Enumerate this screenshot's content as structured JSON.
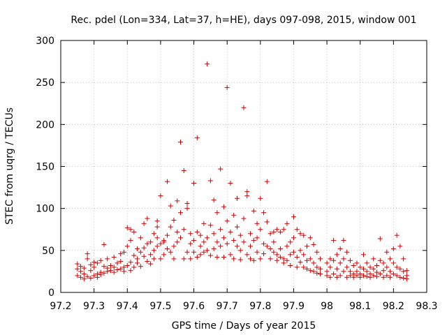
{
  "chart_data": {
    "type": "scatter",
    "title": "Rec. pdel (Lon=334, Lat=37, h=HE), days 097-098, 2015, window 001",
    "xlabel": "GPS time / Days of year 2015",
    "ylabel": "STEC from uqrg / TECUs",
    "xlim": [
      97.2,
      98.3
    ],
    "ylim": [
      0,
      300
    ],
    "xticks": [
      "97.2",
      "97.3",
      "97.4",
      "97.5",
      "97.6",
      "97.7",
      "97.8",
      "97.9",
      "98",
      "98.1",
      "98.2",
      "98.3"
    ],
    "xtick_values": [
      97.2,
      97.3,
      97.4,
      97.5,
      97.6,
      97.7,
      97.8,
      97.9,
      98.0,
      98.1,
      98.2,
      98.3
    ],
    "yticks": [
      "0",
      "50",
      "100",
      "150",
      "200",
      "250",
      "300"
    ],
    "ytick_values": [
      0,
      50,
      100,
      150,
      200,
      250,
      300
    ],
    "grid": true,
    "marker": "+",
    "color": "#cc0000",
    "points": [
      [
        97.25,
        20
      ],
      [
        97.25,
        28
      ],
      [
        97.25,
        34
      ],
      [
        97.26,
        18
      ],
      [
        97.26,
        25
      ],
      [
        97.26,
        31
      ],
      [
        97.27,
        16
      ],
      [
        97.27,
        22
      ],
      [
        97.27,
        29
      ],
      [
        97.28,
        40
      ],
      [
        97.28,
        46
      ],
      [
        97.28,
        19
      ],
      [
        97.29,
        17
      ],
      [
        97.29,
        26
      ],
      [
        97.29,
        33
      ],
      [
        97.3,
        20
      ],
      [
        97.3,
        30
      ],
      [
        97.3,
        36
      ],
      [
        97.31,
        22
      ],
      [
        97.31,
        35
      ],
      [
        97.31,
        18
      ],
      [
        97.32,
        24
      ],
      [
        97.32,
        38
      ],
      [
        97.32,
        21
      ],
      [
        97.33,
        23
      ],
      [
        97.33,
        57
      ],
      [
        97.33,
        31
      ],
      [
        97.34,
        25
      ],
      [
        97.34,
        29
      ],
      [
        97.34,
        40
      ],
      [
        97.35,
        26
      ],
      [
        97.35,
        32
      ],
      [
        97.36,
        24
      ],
      [
        97.36,
        42
      ],
      [
        97.36,
        30
      ],
      [
        97.37,
        27
      ],
      [
        97.37,
        35
      ],
      [
        97.38,
        28
      ],
      [
        97.38,
        37
      ],
      [
        97.38,
        46
      ],
      [
        97.39,
        30
      ],
      [
        97.39,
        48
      ],
      [
        97.39,
        25
      ],
      [
        97.4,
        32
      ],
      [
        97.4,
        55
      ],
      [
        97.4,
        77
      ],
      [
        97.41,
        26
      ],
      [
        97.41,
        36
      ],
      [
        97.41,
        62
      ],
      [
        97.41,
        75
      ],
      [
        97.42,
        30
      ],
      [
        97.42,
        44
      ],
      [
        97.42,
        72
      ],
      [
        97.43,
        35
      ],
      [
        97.43,
        52
      ],
      [
        97.43,
        40
      ],
      [
        97.44,
        48
      ],
      [
        97.44,
        65
      ],
      [
        97.44,
        31
      ],
      [
        97.45,
        53
      ],
      [
        97.45,
        82
      ],
      [
        97.45,
        43
      ],
      [
        97.46,
        37
      ],
      [
        97.46,
        58
      ],
      [
        97.46,
        88
      ],
      [
        97.47,
        45
      ],
      [
        97.47,
        60
      ],
      [
        97.47,
        34
      ],
      [
        97.48,
        50
      ],
      [
        97.48,
        70
      ],
      [
        97.48,
        40
      ],
      [
        97.49,
        55
      ],
      [
        97.49,
        65
      ],
      [
        97.49,
        85
      ],
      [
        97.49,
        78
      ],
      [
        97.5,
        40
      ],
      [
        97.5,
        58
      ],
      [
        97.5,
        115
      ],
      [
        97.51,
        45
      ],
      [
        97.51,
        62
      ],
      [
        97.51,
        60
      ],
      [
        97.52,
        132
      ],
      [
        97.52,
        52
      ],
      [
        97.52,
        68
      ],
      [
        97.53,
        48
      ],
      [
        97.53,
        78
      ],
      [
        97.53,
        103
      ],
      [
        97.54,
        40
      ],
      [
        97.54,
        86
      ],
      [
        97.54,
        55
      ],
      [
        97.55,
        109
      ],
      [
        97.55,
        72
      ],
      [
        97.55,
        60
      ],
      [
        97.56,
        179
      ],
      [
        97.56,
        95
      ],
      [
        97.56,
        65
      ],
      [
        97.57,
        40
      ],
      [
        97.57,
        145
      ],
      [
        97.57,
        75
      ],
      [
        97.58,
        48
      ],
      [
        97.58,
        106
      ],
      [
        97.58,
        100
      ],
      [
        97.59,
        40
      ],
      [
        97.59,
        58
      ],
      [
        97.59,
        70
      ],
      [
        97.6,
        130
      ],
      [
        97.6,
        48
      ],
      [
        97.6,
        62
      ],
      [
        97.61,
        184
      ],
      [
        97.61,
        42
      ],
      [
        97.61,
        72
      ],
      [
        97.62,
        68
      ],
      [
        97.62,
        55
      ],
      [
        97.62,
        45
      ],
      [
        97.63,
        60
      ],
      [
        97.63,
        82
      ],
      [
        97.63,
        48
      ],
      [
        97.64,
        272
      ],
      [
        97.64,
        65
      ],
      [
        97.64,
        50
      ],
      [
        97.65,
        133
      ],
      [
        97.65,
        80
      ],
      [
        97.65,
        44
      ],
      [
        97.66,
        70
      ],
      [
        97.66,
        110
      ],
      [
        97.66,
        52
      ],
      [
        97.67,
        95
      ],
      [
        97.67,
        60
      ],
      [
        97.67,
        42
      ],
      [
        97.68,
        147
      ],
      [
        97.68,
        75
      ],
      [
        97.68,
        55
      ],
      [
        97.69,
        102
      ],
      [
        97.69,
        65
      ],
      [
        97.69,
        42
      ],
      [
        97.7,
        244
      ],
      [
        97.7,
        85
      ],
      [
        97.7,
        58
      ],
      [
        97.71,
        130
      ],
      [
        97.71,
        72
      ],
      [
        97.71,
        45
      ],
      [
        97.72,
        92
      ],
      [
        97.72,
        62
      ],
      [
        97.72,
        40
      ],
      [
        97.73,
        112
      ],
      [
        97.73,
        55
      ],
      [
        97.73,
        78
      ],
      [
        97.74,
        68
      ],
      [
        97.74,
        50
      ],
      [
        97.74,
        39
      ],
      [
        97.75,
        220
      ],
      [
        97.75,
        88
      ],
      [
        97.75,
        60
      ],
      [
        97.76,
        120
      ],
      [
        97.76,
        115
      ],
      [
        97.76,
        45
      ],
      [
        97.77,
        70
      ],
      [
        97.77,
        40
      ],
      [
        97.77,
        55
      ],
      [
        97.78,
        97
      ],
      [
        97.78,
        62
      ],
      [
        97.78,
        38
      ],
      [
        97.79,
        82
      ],
      [
        97.79,
        48
      ],
      [
        97.79,
        65
      ],
      [
        97.8,
        112
      ],
      [
        97.8,
        75
      ],
      [
        97.8,
        40
      ],
      [
        97.81,
        95
      ],
      [
        97.81,
        58
      ],
      [
        97.81,
        46
      ],
      [
        97.82,
        132
      ],
      [
        97.82,
        84
      ],
      [
        97.82,
        55
      ],
      [
        97.83,
        70
      ],
      [
        97.83,
        52
      ],
      [
        97.83,
        40
      ],
      [
        97.84,
        72
      ],
      [
        97.84,
        60
      ],
      [
        97.84,
        48
      ],
      [
        97.85,
        75
      ],
      [
        97.85,
        45
      ],
      [
        97.85,
        38
      ],
      [
        97.86,
        72
      ],
      [
        97.86,
        52
      ],
      [
        97.86,
        42
      ],
      [
        97.87,
        75
      ],
      [
        97.87,
        40
      ],
      [
        97.87,
        35
      ],
      [
        97.88,
        82
      ],
      [
        97.88,
        55
      ],
      [
        97.88,
        38
      ],
      [
        97.89,
        60
      ],
      [
        97.89,
        45
      ],
      [
        97.89,
        32
      ],
      [
        97.9,
        90
      ],
      [
        97.9,
        65
      ],
      [
        97.9,
        48
      ],
      [
        97.91,
        75
      ],
      [
        97.91,
        42
      ],
      [
        97.91,
        30
      ],
      [
        97.92,
        70
      ],
      [
        97.92,
        50
      ],
      [
        97.92,
        36
      ],
      [
        97.93,
        68
      ],
      [
        97.93,
        45
      ],
      [
        97.93,
        30
      ],
      [
        97.94,
        55
      ],
      [
        97.94,
        38
      ],
      [
        97.94,
        28
      ],
      [
        97.95,
        65
      ],
      [
        97.95,
        40
      ],
      [
        97.95,
        26
      ],
      [
        97.96,
        57
      ],
      [
        97.96,
        35
      ],
      [
        97.96,
        25
      ],
      [
        97.97,
        48
      ],
      [
        97.97,
        30
      ],
      [
        97.97,
        23
      ],
      [
        97.98,
        40
      ],
      [
        97.98,
        28
      ],
      [
        97.98,
        22
      ],
      [
        98.0,
        35
      ],
      [
        98.0,
        25
      ],
      [
        98.0,
        20
      ],
      [
        98.01,
        40
      ],
      [
        98.01,
        30
      ],
      [
        98.01,
        18
      ],
      [
        98.02,
        62
      ],
      [
        98.02,
        38
      ],
      [
        98.02,
        22
      ],
      [
        98.03,
        45
      ],
      [
        98.03,
        28
      ],
      [
        98.03,
        18
      ],
      [
        98.04,
        52
      ],
      [
        98.04,
        35
      ],
      [
        98.04,
        20
      ],
      [
        98.05,
        62
      ],
      [
        98.05,
        40
      ],
      [
        98.05,
        25
      ],
      [
        98.06,
        48
      ],
      [
        98.06,
        30
      ],
      [
        98.06,
        18
      ],
      [
        98.07,
        38
      ],
      [
        98.07,
        25
      ],
      [
        98.07,
        20
      ],
      [
        98.08,
        32
      ],
      [
        98.08,
        22
      ],
      [
        98.08,
        18
      ],
      [
        98.09,
        35
      ],
      [
        98.09,
        25
      ],
      [
        98.09,
        20
      ],
      [
        98.1,
        30
      ],
      [
        98.1,
        22
      ],
      [
        98.1,
        18
      ],
      [
        98.11,
        45
      ],
      [
        98.11,
        28
      ],
      [
        98.11,
        20
      ],
      [
        98.12,
        35
      ],
      [
        98.12,
        25
      ],
      [
        98.12,
        19
      ],
      [
        98.13,
        30
      ],
      [
        98.13,
        22
      ],
      [
        98.13,
        18
      ],
      [
        98.14,
        40
      ],
      [
        98.14,
        28
      ],
      [
        98.14,
        20
      ],
      [
        98.15,
        32
      ],
      [
        98.15,
        24
      ],
      [
        98.15,
        19
      ],
      [
        98.16,
        64
      ],
      [
        98.16,
        38
      ],
      [
        98.16,
        22
      ],
      [
        98.17,
        35
      ],
      [
        98.17,
        26
      ],
      [
        98.17,
        18
      ],
      [
        98.18,
        48
      ],
      [
        98.18,
        30
      ],
      [
        98.18,
        20
      ],
      [
        98.19,
        40
      ],
      [
        98.19,
        25
      ],
      [
        98.19,
        18
      ],
      [
        98.2,
        52
      ],
      [
        98.2,
        35
      ],
      [
        98.2,
        22
      ],
      [
        98.21,
        68
      ],
      [
        98.21,
        30
      ],
      [
        98.21,
        20
      ],
      [
        98.22,
        55
      ],
      [
        98.22,
        28
      ],
      [
        98.22,
        18
      ],
      [
        98.23,
        40
      ],
      [
        98.23,
        25
      ],
      [
        98.23,
        17
      ],
      [
        98.24,
        26
      ],
      [
        98.24,
        20
      ],
      [
        98.24,
        16
      ]
    ]
  }
}
